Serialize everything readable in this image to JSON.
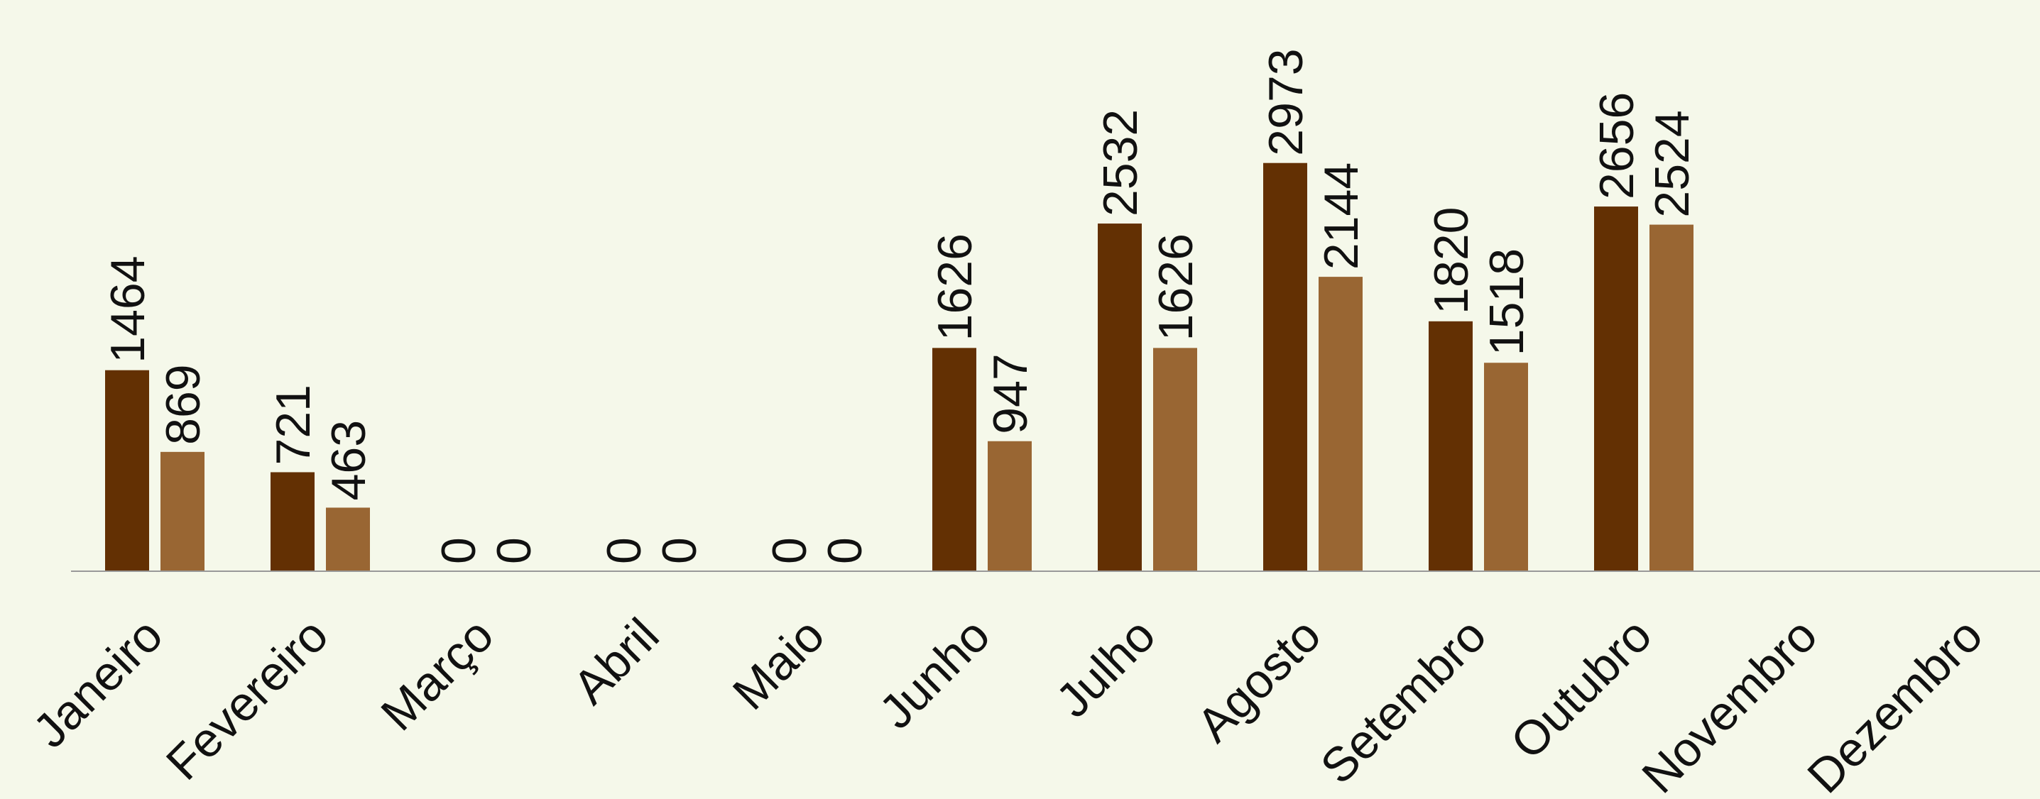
{
  "chart_data": {
    "type": "bar",
    "title": "",
    "xlabel": "",
    "ylabel": "",
    "categories": [
      "Janeiro",
      "Fevereiro",
      "Março",
      "Abril",
      "Maio",
      "Junho",
      "Julho",
      "Agosto",
      "Setembro",
      "Outubro",
      "Novembro",
      "Dezembro"
    ],
    "series": [
      {
        "values": [
          1464,
          721,
          0,
          0,
          0,
          1626,
          2532,
          2973,
          1820,
          2656,
          null,
          null
        ],
        "color": "#633003"
      },
      {
        "values": [
          869,
          463,
          0,
          0,
          0,
          947,
          1626,
          2144,
          1518,
          2524,
          null,
          null
        ],
        "color": "#996633"
      }
    ],
    "ylim": [
      0,
      4160
    ],
    "grid": false,
    "legend": "none",
    "data_labels": true,
    "label_rotation": -90,
    "tick_rotation": -45,
    "axis_color": "#999999",
    "background": "#f5f8ea"
  }
}
